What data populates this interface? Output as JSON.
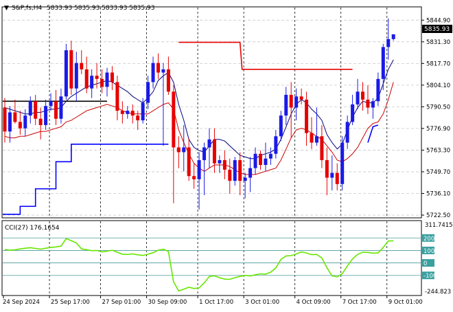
{
  "header": {
    "arrow_glyph": "▼",
    "symbol": "S&P,fs,H4",
    "ohlc": "5833.93 5835.93 5833.93 5835.93"
  },
  "price_scale": {
    "ticks": [
      "5844.90",
      "5831.30",
      "5817.70",
      "5804.10",
      "5790.50",
      "5776.90",
      "5763.30",
      "5749.70",
      "5736.10",
      "5722.50"
    ],
    "current_price": "5835.93"
  },
  "indicator": {
    "label": "CCI(27) 176.1654",
    "ticks": [
      "311.7415",
      "200",
      "100",
      "0",
      "-100",
      "-244.823"
    ],
    "levels": [
      200,
      100,
      0,
      -100
    ],
    "range": [
      -244.823,
      311.7415
    ]
  },
  "time_axis": {
    "labels": [
      "24 Sep 2024",
      "25 Sep 17:00",
      "27 Sep 01:00",
      "30 Sep 09:00",
      "1 Oct 17:00",
      "3 Oct 01:00",
      "4 Oct 09:00",
      "7 Oct 17:00",
      "9 Oct 01:00"
    ]
  },
  "colors": {
    "bull": "#1a1ae6",
    "bear": "#e60000",
    "fast_ma": "#00007a",
    "slow_ma": "#cc0000",
    "cci_line": "#66e600",
    "level_line": "#0000ff",
    "trend_line": "#0000ff",
    "resistance": "#e60000",
    "grid": "#000000"
  },
  "chart_data": {
    "type": "candlestick",
    "price_range": [
      5722.5,
      5851.5
    ],
    "candles": [
      {
        "o": 5790,
        "h": 5796,
        "l": 5768,
        "c": 5775
      },
      {
        "o": 5775,
        "h": 5791,
        "l": 5768,
        "c": 5787
      },
      {
        "o": 5787,
        "h": 5795,
        "l": 5780,
        "c": 5781
      },
      {
        "o": 5781,
        "h": 5788,
        "l": 5773,
        "c": 5777
      },
      {
        "o": 5777,
        "h": 5789,
        "l": 5772,
        "c": 5785
      },
      {
        "o": 5785,
        "h": 5797,
        "l": 5780,
        "c": 5794
      },
      {
        "o": 5794,
        "h": 5798,
        "l": 5779,
        "c": 5783
      },
      {
        "o": 5783,
        "h": 5790,
        "l": 5770,
        "c": 5779
      },
      {
        "o": 5779,
        "h": 5795,
        "l": 5776,
        "c": 5791
      },
      {
        "o": 5791,
        "h": 5799,
        "l": 5788,
        "c": 5794
      },
      {
        "o": 5794,
        "h": 5801,
        "l": 5779,
        "c": 5783
      },
      {
        "o": 5783,
        "h": 5802,
        "l": 5780,
        "c": 5797
      },
      {
        "o": 5797,
        "h": 5830,
        "l": 5795,
        "c": 5826
      },
      {
        "o": 5826,
        "h": 5832,
        "l": 5798,
        "c": 5802
      },
      {
        "o": 5802,
        "h": 5825,
        "l": 5794,
        "c": 5818
      },
      {
        "o": 5818,
        "h": 5826,
        "l": 5811,
        "c": 5814
      },
      {
        "o": 5814,
        "h": 5822,
        "l": 5799,
        "c": 5802
      },
      {
        "o": 5802,
        "h": 5814,
        "l": 5796,
        "c": 5810
      },
      {
        "o": 5810,
        "h": 5818,
        "l": 5802,
        "c": 5808
      },
      {
        "o": 5808,
        "h": 5814,
        "l": 5799,
        "c": 5803
      },
      {
        "o": 5803,
        "h": 5815,
        "l": 5797,
        "c": 5812
      },
      {
        "o": 5812,
        "h": 5816,
        "l": 5801,
        "c": 5806
      },
      {
        "o": 5806,
        "h": 5810,
        "l": 5782,
        "c": 5788
      },
      {
        "o": 5788,
        "h": 5794,
        "l": 5780,
        "c": 5786
      },
      {
        "o": 5786,
        "h": 5791,
        "l": 5783,
        "c": 5788
      },
      {
        "o": 5788,
        "h": 5792,
        "l": 5780,
        "c": 5785
      },
      {
        "o": 5785,
        "h": 5788,
        "l": 5776,
        "c": 5782
      },
      {
        "o": 5782,
        "h": 5796,
        "l": 5780,
        "c": 5793
      },
      {
        "o": 5793,
        "h": 5810,
        "l": 5789,
        "c": 5806
      },
      {
        "o": 5806,
        "h": 5822,
        "l": 5802,
        "c": 5818
      },
      {
        "o": 5818,
        "h": 5824,
        "l": 5808,
        "c": 5812
      },
      {
        "o": 5812,
        "h": 5818,
        "l": 5766,
        "c": 5814
      },
      {
        "o": 5814,
        "h": 5822,
        "l": 5798,
        "c": 5800
      },
      {
        "o": 5800,
        "h": 5804,
        "l": 5730,
        "c": 5765
      },
      {
        "o": 5765,
        "h": 5772,
        "l": 5752,
        "c": 5762
      },
      {
        "o": 5762,
        "h": 5779,
        "l": 5750,
        "c": 5765
      },
      {
        "o": 5765,
        "h": 5771,
        "l": 5744,
        "c": 5747
      },
      {
        "o": 5747,
        "h": 5755,
        "l": 5739,
        "c": 5745
      },
      {
        "o": 5745,
        "h": 5762,
        "l": 5726,
        "c": 5757
      },
      {
        "o": 5757,
        "h": 5768,
        "l": 5735,
        "c": 5765
      },
      {
        "o": 5765,
        "h": 5777,
        "l": 5752,
        "c": 5770
      },
      {
        "o": 5770,
        "h": 5777,
        "l": 5749,
        "c": 5755
      },
      {
        "o": 5755,
        "h": 5760,
        "l": 5749,
        "c": 5757
      },
      {
        "o": 5757,
        "h": 5763,
        "l": 5745,
        "c": 5751
      },
      {
        "o": 5751,
        "h": 5758,
        "l": 5736,
        "c": 5744
      },
      {
        "o": 5744,
        "h": 5759,
        "l": 5741,
        "c": 5757
      },
      {
        "o": 5757,
        "h": 5762,
        "l": 5735,
        "c": 5744
      },
      {
        "o": 5744,
        "h": 5749,
        "l": 5733,
        "c": 5746
      },
      {
        "o": 5746,
        "h": 5759,
        "l": 5737,
        "c": 5752
      },
      {
        "o": 5752,
        "h": 5765,
        "l": 5748,
        "c": 5761
      },
      {
        "o": 5761,
        "h": 5763,
        "l": 5751,
        "c": 5754
      },
      {
        "o": 5754,
        "h": 5768,
        "l": 5750,
        "c": 5758
      },
      {
        "o": 5758,
        "h": 5765,
        "l": 5754,
        "c": 5761
      },
      {
        "o": 5761,
        "h": 5776,
        "l": 5758,
        "c": 5772
      },
      {
        "o": 5772,
        "h": 5788,
        "l": 5769,
        "c": 5785
      },
      {
        "o": 5785,
        "h": 5803,
        "l": 5779,
        "c": 5798
      },
      {
        "o": 5798,
        "h": 5806,
        "l": 5771,
        "c": 5790
      },
      {
        "o": 5790,
        "h": 5802,
        "l": 5782,
        "c": 5797
      },
      {
        "o": 5797,
        "h": 5802,
        "l": 5792,
        "c": 5795
      },
      {
        "o": 5795,
        "h": 5800,
        "l": 5766,
        "c": 5774
      },
      {
        "o": 5774,
        "h": 5784,
        "l": 5764,
        "c": 5768
      },
      {
        "o": 5768,
        "h": 5790,
        "l": 5766,
        "c": 5772
      },
      {
        "o": 5772,
        "h": 5779,
        "l": 5752,
        "c": 5757
      },
      {
        "o": 5757,
        "h": 5765,
        "l": 5735,
        "c": 5746
      },
      {
        "o": 5746,
        "h": 5760,
        "l": 5738,
        "c": 5749
      },
      {
        "o": 5749,
        "h": 5755,
        "l": 5738,
        "c": 5742
      },
      {
        "o": 5742,
        "h": 5772,
        "l": 5738,
        "c": 5768
      },
      {
        "o": 5768,
        "h": 5785,
        "l": 5764,
        "c": 5781
      },
      {
        "o": 5781,
        "h": 5798,
        "l": 5779,
        "c": 5792
      },
      {
        "o": 5792,
        "h": 5808,
        "l": 5789,
        "c": 5800
      },
      {
        "o": 5800,
        "h": 5806,
        "l": 5788,
        "c": 5795
      },
      {
        "o": 5795,
        "h": 5804,
        "l": 5786,
        "c": 5790
      },
      {
        "o": 5790,
        "h": 5796,
        "l": 5783,
        "c": 5794
      },
      {
        "o": 5794,
        "h": 5812,
        "l": 5791,
        "c": 5808
      },
      {
        "o": 5808,
        "h": 5830,
        "l": 5801,
        "c": 5828
      },
      {
        "o": 5828,
        "h": 5846,
        "l": 5820,
        "c": 5833
      },
      {
        "o": 5833,
        "h": 5836,
        "l": 5832,
        "c": 5836
      }
    ],
    "fast_ma": [
      5790,
      5789,
      5788,
      5787,
      5786,
      5786,
      5787,
      5787,
      5788,
      5789,
      5789,
      5790,
      5794,
      5797,
      5799,
      5801,
      5803,
      5804,
      5805,
      5806,
      5807,
      5806,
      5804,
      5802,
      5800,
      5797,
      5795,
      5793,
      5796,
      5800,
      5807,
      5810,
      5812,
      5806,
      5792,
      5782,
      5770,
      5765,
      5763,
      5762,
      5766,
      5770,
      5770,
      5769,
      5766,
      5763,
      5760,
      5759,
      5758,
      5758,
      5760,
      5761,
      5762,
      5764,
      5770,
      5778,
      5786,
      5792,
      5795,
      5793,
      5789,
      5786,
      5782,
      5773,
      5768,
      5764,
      5767,
      5776,
      5784,
      5790,
      5794,
      5793,
      5793,
      5796,
      5805,
      5814,
      5820
    ],
    "slow_ma": [
      5772,
      5771,
      5771,
      5772,
      5772,
      5773,
      5774,
      5775,
      5775,
      5776,
      5777,
      5778,
      5781,
      5782,
      5784,
      5786,
      5788,
      5789,
      5790,
      5791,
      5792,
      5791,
      5790,
      5788,
      5787,
      5786,
      5786,
      5786,
      5786,
      5788,
      5790,
      5792,
      5793,
      5789,
      5776,
      5768,
      5761,
      5755,
      5752,
      5750,
      5752,
      5754,
      5754,
      5754,
      5753,
      5751,
      5749,
      5748,
      5748,
      5748,
      5749,
      5750,
      5751,
      5752,
      5757,
      5764,
      5771,
      5776,
      5777,
      5776,
      5774,
      5772,
      5770,
      5766,
      5762,
      5757,
      5756,
      5758,
      5761,
      5765,
      5771,
      5777,
      5780,
      5781,
      5786,
      5795,
      5806
    ],
    "cci": [
      108,
      102,
      105,
      112,
      118,
      122,
      116,
      110,
      118,
      124,
      128,
      135,
      195,
      178,
      160,
      112,
      106,
      98,
      100,
      88,
      94,
      102,
      86,
      70,
      68,
      72,
      65,
      60,
      70,
      82,
      102,
      110,
      92,
      -150,
      -225,
      -210,
      -195,
      -205,
      -200,
      -160,
      -108,
      -104,
      -118,
      -130,
      -132,
      -118,
      -108,
      -100,
      -105,
      -95,
      -88,
      -90,
      -74,
      -40,
      28,
      56,
      58,
      72,
      88,
      80,
      66,
      68,
      40,
      -40,
      -104,
      -112,
      -86,
      -24,
      32,
      68,
      86,
      84,
      78,
      80,
      124,
      176,
      176
    ],
    "resistance_segments": [
      {
        "from": 11,
        "to": 20,
        "value": 5794
      },
      {
        "from": 34,
        "to": 46,
        "value": 5831
      },
      {
        "from": 47,
        "to": 68,
        "value": 5814
      }
    ],
    "trend_steps": [
      {
        "from": 0,
        "to": 3,
        "value": 5723
      },
      {
        "from": 3,
        "to": 6,
        "value": 5728
      },
      {
        "from": 6,
        "to": 10,
        "value": 5739
      },
      {
        "from": 10,
        "to": 13,
        "value": 5756
      },
      {
        "from": 13,
        "to": 16,
        "value": 5767
      },
      {
        "from": 16,
        "to": 32,
        "value": 5767
      }
    ],
    "trend_tail": [
      {
        "i": 71,
        "v": 5768
      },
      {
        "i": 72,
        "v": 5778
      },
      {
        "i": 73,
        "v": 5779
      }
    ]
  }
}
